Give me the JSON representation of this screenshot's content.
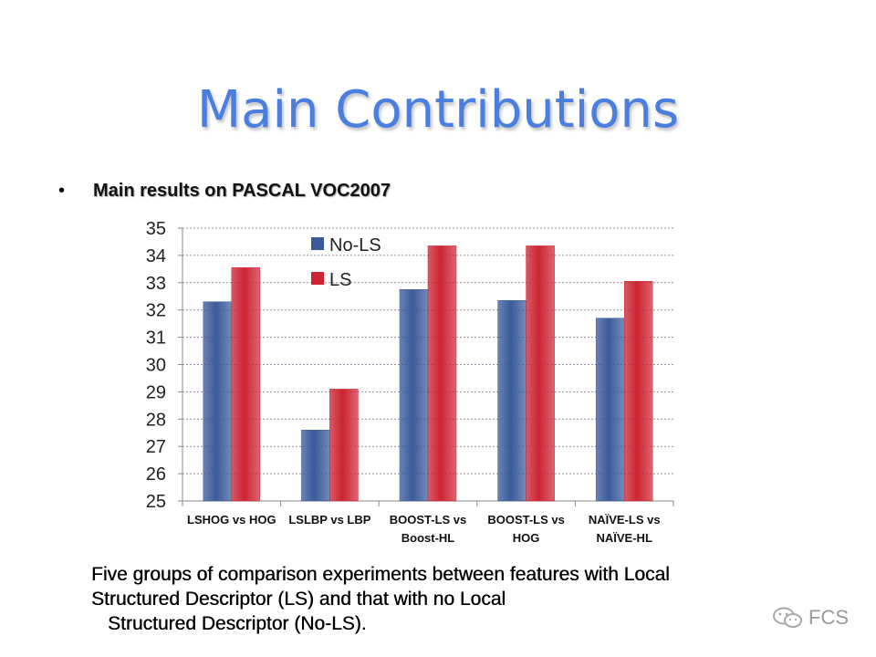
{
  "slide": {
    "title": "Main Contributions",
    "bullet": "Main results on PASCAL VOC2007",
    "caption_lines": [
      "Five groups of comparison experiments between features with Local",
      "Structured Descriptor (LS) and that with no Local",
      "Structured Descriptor (No-LS)."
    ],
    "watermark": "FCS",
    "icons": {
      "bullet": "bullet-dot-icon",
      "watermark": "wechat-logo-icon"
    }
  },
  "chart_data": {
    "type": "bar",
    "categories": [
      [
        "LSHOG vs HOG"
      ],
      [
        "LSLBP vs LBP"
      ],
      [
        "BOOST-LS vs",
        "Boost-HL"
      ],
      [
        "BOOST-LS vs",
        "HOG"
      ],
      [
        "NAÏVE-LS vs",
        "NAÏVE-HL"
      ]
    ],
    "series": [
      {
        "name": "No-LS",
        "color": "#3a5a9a",
        "values": [
          32.3,
          27.6,
          32.75,
          32.35,
          31.7
        ]
      },
      {
        "name": "LS",
        "color": "#cc2432",
        "values": [
          33.55,
          29.1,
          34.35,
          34.35,
          33.05
        ]
      }
    ],
    "ylim": [
      25,
      35
    ],
    "yticks": [
      25,
      26,
      27,
      28,
      29,
      30,
      31,
      32,
      33,
      34,
      35
    ],
    "grid": true,
    "legend": "top-left",
    "title": "",
    "xlabel": "",
    "ylabel": ""
  }
}
